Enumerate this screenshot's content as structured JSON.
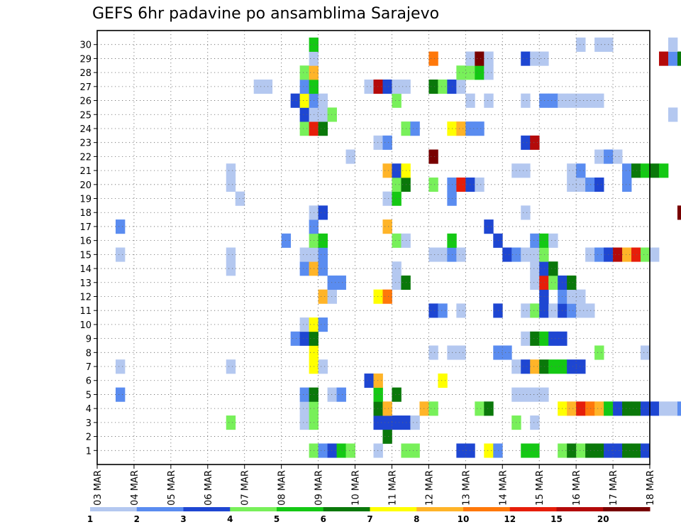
{
  "chart_data": {
    "type": "heatmap",
    "title": "GEFS 6hr padavine po ansamblima Sarajevo",
    "xlabel": "",
    "ylabel": "",
    "x_tick_labels": [
      "03 MAR",
      "04 MAR",
      "05 MAR",
      "06 MAR",
      "07 MAR",
      "08 MAR",
      "09 MAR",
      "10 MAR",
      "11 MAR",
      "12 MAR",
      "13 MAR",
      "14 MAR",
      "15 MAR",
      "16 MAR",
      "17 MAR",
      "18 MAR"
    ],
    "y_tick_labels": [
      "1",
      "2",
      "3",
      "4",
      "5",
      "6",
      "7",
      "8",
      "9",
      "10",
      "11",
      "12",
      "13",
      "14",
      "15",
      "16",
      "17",
      "18",
      "19",
      "20",
      "21",
      "22",
      "23",
      "24",
      "25",
      "26",
      "27",
      "28",
      "29",
      "30"
    ],
    "time_steps_per_day": 4,
    "grid": "dotted",
    "legend": {
      "placement": "bottom",
      "colors": [
        "#b4c8f0",
        "#5a8cf0",
        "#1e46d2",
        "#78f05a",
        "#14c814",
        "#0a780a",
        "#ffff00",
        "#ffb428",
        "#ff780a",
        "#e61e0a",
        "#b40a0a",
        "#780000"
      ],
      "labels": [
        "1",
        "2",
        "3",
        "4",
        "5",
        "6",
        "7",
        "8",
        "10",
        "12",
        "15",
        "20"
      ]
    },
    "cells": [
      [
        0,
        23,
        4
      ],
      [
        0,
        24,
        2
      ],
      [
        0,
        25,
        3
      ],
      [
        0,
        26,
        5
      ],
      [
        0,
        27,
        4
      ],
      [
        0,
        30,
        1
      ],
      [
        0,
        33,
        4
      ],
      [
        0,
        34,
        4
      ],
      [
        0,
        39,
        3
      ],
      [
        0,
        40,
        3
      ],
      [
        0,
        42,
        7
      ],
      [
        0,
        43,
        2
      ],
      [
        0,
        46,
        5
      ],
      [
        0,
        47,
        5
      ],
      [
        0,
        50,
        4
      ],
      [
        0,
        51,
        6
      ],
      [
        0,
        52,
        4
      ],
      [
        0,
        53,
        6
      ],
      [
        0,
        54,
        6
      ],
      [
        0,
        55,
        3
      ],
      [
        0,
        56,
        3
      ],
      [
        0,
        57,
        6
      ],
      [
        0,
        58,
        6
      ],
      [
        0,
        59,
        3
      ],
      [
        1,
        31,
        6
      ],
      [
        2,
        14,
        4
      ],
      [
        2,
        22,
        1
      ],
      [
        2,
        23,
        4
      ],
      [
        2,
        30,
        3
      ],
      [
        2,
        31,
        3
      ],
      [
        2,
        32,
        3
      ],
      [
        2,
        33,
        3
      ],
      [
        2,
        34,
        1
      ],
      [
        2,
        45,
        4
      ],
      [
        2,
        47,
        1
      ],
      [
        3,
        22,
        1
      ],
      [
        3,
        23,
        4
      ],
      [
        3,
        30,
        6
      ],
      [
        3,
        31,
        8
      ],
      [
        3,
        35,
        8
      ],
      [
        3,
        36,
        4
      ],
      [
        3,
        41,
        4
      ],
      [
        3,
        42,
        6
      ],
      [
        3,
        50,
        7
      ],
      [
        3,
        51,
        8
      ],
      [
        3,
        52,
        10
      ],
      [
        3,
        53,
        9
      ],
      [
        3,
        54,
        8
      ],
      [
        3,
        55,
        5
      ],
      [
        3,
        56,
        3
      ],
      [
        3,
        57,
        6
      ],
      [
        3,
        58,
        6
      ],
      [
        3,
        59,
        3
      ],
      [
        3,
        60,
        3
      ],
      [
        3,
        61,
        1
      ],
      [
        3,
        62,
        1
      ],
      [
        3,
        63,
        2
      ],
      [
        4,
        2,
        2
      ],
      [
        4,
        22,
        2
      ],
      [
        4,
        23,
        6
      ],
      [
        4,
        25,
        1
      ],
      [
        4,
        26,
        2
      ],
      [
        4,
        30,
        5
      ],
      [
        4,
        32,
        6
      ],
      [
        4,
        45,
        1
      ],
      [
        4,
        46,
        1
      ],
      [
        4,
        47,
        1
      ],
      [
        4,
        48,
        1
      ],
      [
        5,
        29,
        3
      ],
      [
        5,
        30,
        8
      ],
      [
        5,
        37,
        7
      ],
      [
        6,
        2,
        1
      ],
      [
        6,
        14,
        1
      ],
      [
        6,
        23,
        7
      ],
      [
        6,
        24,
        1
      ],
      [
        6,
        45,
        1
      ],
      [
        6,
        46,
        3
      ],
      [
        6,
        47,
        8
      ],
      [
        6,
        48,
        6
      ],
      [
        6,
        49,
        5
      ],
      [
        6,
        50,
        5
      ],
      [
        6,
        51,
        3
      ],
      [
        6,
        52,
        3
      ],
      [
        7,
        23,
        7
      ],
      [
        7,
        36,
        1
      ],
      [
        7,
        38,
        1
      ],
      [
        7,
        39,
        1
      ],
      [
        7,
        43,
        2
      ],
      [
        7,
        44,
        2
      ],
      [
        7,
        54,
        4
      ],
      [
        7,
        59,
        1
      ],
      [
        8,
        21,
        2
      ],
      [
        8,
        22,
        3
      ],
      [
        8,
        23,
        6
      ],
      [
        8,
        46,
        1
      ],
      [
        8,
        47,
        6
      ],
      [
        8,
        48,
        5
      ],
      [
        8,
        49,
        3
      ],
      [
        8,
        50,
        3
      ],
      [
        9,
        22,
        1
      ],
      [
        9,
        23,
        7
      ],
      [
        9,
        24,
        2
      ],
      [
        10,
        36,
        3
      ],
      [
        10,
        37,
        2
      ],
      [
        10,
        39,
        1
      ],
      [
        10,
        43,
        3
      ],
      [
        10,
        46,
        1
      ],
      [
        10,
        47,
        4
      ],
      [
        10,
        48,
        3
      ],
      [
        10,
        49,
        1
      ],
      [
        10,
        50,
        3
      ],
      [
        10,
        51,
        2
      ],
      [
        10,
        52,
        1
      ],
      [
        10,
        53,
        1
      ],
      [
        11,
        24,
        8
      ],
      [
        11,
        25,
        1
      ],
      [
        11,
        30,
        7
      ],
      [
        11,
        31,
        9
      ],
      [
        11,
        48,
        3
      ],
      [
        11,
        50,
        2
      ],
      [
        11,
        51,
        1
      ],
      [
        11,
        52,
        1
      ],
      [
        12,
        25,
        2
      ],
      [
        12,
        26,
        2
      ],
      [
        12,
        32,
        1
      ],
      [
        12,
        33,
        6
      ],
      [
        12,
        47,
        1
      ],
      [
        12,
        48,
        10
      ],
      [
        12,
        49,
        4
      ],
      [
        12,
        50,
        3
      ],
      [
        12,
        51,
        6
      ],
      [
        13,
        14,
        1
      ],
      [
        13,
        22,
        2
      ],
      [
        13,
        23,
        8
      ],
      [
        13,
        24,
        2
      ],
      [
        13,
        32,
        1
      ],
      [
        13,
        47,
        1
      ],
      [
        13,
        48,
        3
      ],
      [
        13,
        49,
        6
      ],
      [
        14,
        2,
        1
      ],
      [
        14,
        14,
        1
      ],
      [
        14,
        22,
        1
      ],
      [
        14,
        23,
        1
      ],
      [
        14,
        24,
        2
      ],
      [
        14,
        36,
        1
      ],
      [
        14,
        37,
        1
      ],
      [
        14,
        38,
        2
      ],
      [
        14,
        39,
        1
      ],
      [
        14,
        44,
        3
      ],
      [
        14,
        45,
        2
      ],
      [
        14,
        46,
        1
      ],
      [
        14,
        47,
        1
      ],
      [
        14,
        48,
        4
      ],
      [
        14,
        53,
        1
      ],
      [
        14,
        54,
        2
      ],
      [
        14,
        55,
        3
      ],
      [
        14,
        56,
        11
      ],
      [
        14,
        57,
        8
      ],
      [
        14,
        58,
        10
      ],
      [
        14,
        59,
        4
      ],
      [
        14,
        60,
        1
      ],
      [
        15,
        20,
        2
      ],
      [
        15,
        23,
        4
      ],
      [
        15,
        24,
        5
      ],
      [
        15,
        32,
        4
      ],
      [
        15,
        33,
        1
      ],
      [
        15,
        38,
        5
      ],
      [
        15,
        43,
        3
      ],
      [
        15,
        47,
        2
      ],
      [
        15,
        48,
        5
      ],
      [
        15,
        49,
        1
      ],
      [
        16,
        2,
        2
      ],
      [
        16,
        23,
        2
      ],
      [
        16,
        31,
        8
      ],
      [
        16,
        42,
        3
      ],
      [
        17,
        23,
        1
      ],
      [
        17,
        24,
        3
      ],
      [
        17,
        46,
        1
      ],
      [
        17,
        63,
        12
      ],
      [
        18,
        15,
        1
      ],
      [
        18,
        31,
        1
      ],
      [
        18,
        32,
        5
      ],
      [
        18,
        38,
        2
      ],
      [
        19,
        14,
        1
      ],
      [
        19,
        32,
        4
      ],
      [
        19,
        33,
        6
      ],
      [
        19,
        36,
        4
      ],
      [
        19,
        38,
        2
      ],
      [
        19,
        39,
        10
      ],
      [
        19,
        40,
        3
      ],
      [
        19,
        41,
        1
      ],
      [
        19,
        51,
        1
      ],
      [
        19,
        52,
        1
      ],
      [
        19,
        53,
        2
      ],
      [
        19,
        54,
        3
      ],
      [
        19,
        57,
        2
      ],
      [
        20,
        14,
        1
      ],
      [
        20,
        31,
        8
      ],
      [
        20,
        32,
        3
      ],
      [
        20,
        33,
        7
      ],
      [
        20,
        45,
        1
      ],
      [
        20,
        46,
        1
      ],
      [
        20,
        51,
        1
      ],
      [
        20,
        52,
        2
      ],
      [
        20,
        57,
        2
      ],
      [
        20,
        58,
        6
      ],
      [
        20,
        59,
        5
      ],
      [
        20,
        60,
        6
      ],
      [
        20,
        61,
        5
      ],
      [
        21,
        27,
        1
      ],
      [
        21,
        36,
        12
      ],
      [
        21,
        54,
        1
      ],
      [
        21,
        55,
        2
      ],
      [
        21,
        56,
        1
      ],
      [
        22,
        30,
        1
      ],
      [
        22,
        31,
        2
      ],
      [
        22,
        46,
        3
      ],
      [
        22,
        47,
        11
      ],
      [
        23,
        22,
        4
      ],
      [
        23,
        23,
        10
      ],
      [
        23,
        24,
        6
      ],
      [
        23,
        33,
        4
      ],
      [
        23,
        34,
        2
      ],
      [
        23,
        38,
        7
      ],
      [
        23,
        39,
        8
      ],
      [
        23,
        40,
        2
      ],
      [
        23,
        41,
        2
      ],
      [
        24,
        22,
        3
      ],
      [
        24,
        23,
        1
      ],
      [
        24,
        24,
        1
      ],
      [
        24,
        25,
        4
      ],
      [
        24,
        62,
        1
      ],
      [
        25,
        21,
        3
      ],
      [
        25,
        22,
        7
      ],
      [
        25,
        23,
        2
      ],
      [
        25,
        24,
        1
      ],
      [
        25,
        32,
        4
      ],
      [
        25,
        40,
        1
      ],
      [
        25,
        42,
        1
      ],
      [
        25,
        46,
        1
      ],
      [
        25,
        48,
        2
      ],
      [
        25,
        49,
        2
      ],
      [
        25,
        50,
        1
      ],
      [
        25,
        51,
        1
      ],
      [
        25,
        52,
        1
      ],
      [
        25,
        53,
        1
      ],
      [
        25,
        54,
        1
      ],
      [
        26,
        17,
        1
      ],
      [
        26,
        18,
        1
      ],
      [
        26,
        22,
        2
      ],
      [
        26,
        23,
        5
      ],
      [
        26,
        29,
        1
      ],
      [
        26,
        30,
        11
      ],
      [
        26,
        31,
        3
      ],
      [
        26,
        32,
        1
      ],
      [
        26,
        33,
        1
      ],
      [
        26,
        36,
        6
      ],
      [
        26,
        37,
        4
      ],
      [
        26,
        38,
        3
      ],
      [
        26,
        39,
        1
      ],
      [
        27,
        22,
        4
      ],
      [
        27,
        23,
        8
      ],
      [
        27,
        39,
        4
      ],
      [
        27,
        40,
        4
      ],
      [
        27,
        41,
        5
      ],
      [
        27,
        42,
        1
      ],
      [
        28,
        23,
        1
      ],
      [
        28,
        36,
        9
      ],
      [
        28,
        40,
        1
      ],
      [
        28,
        41,
        12
      ],
      [
        28,
        42,
        1
      ],
      [
        28,
        46,
        3
      ],
      [
        28,
        47,
        1
      ],
      [
        28,
        48,
        1
      ],
      [
        28,
        61,
        11
      ],
      [
        28,
        62,
        2
      ],
      [
        28,
        63,
        6
      ],
      [
        29,
        23,
        5
      ],
      [
        29,
        52,
        1
      ],
      [
        29,
        54,
        1
      ],
      [
        29,
        55,
        1
      ],
      [
        29,
        62,
        1
      ]
    ]
  }
}
